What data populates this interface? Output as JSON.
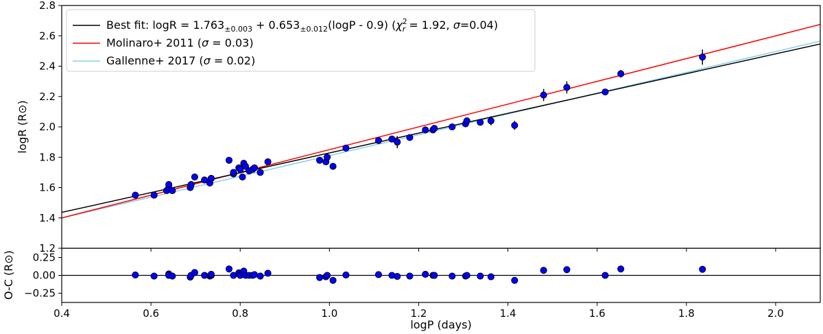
{
  "chart_data": [
    {
      "type": "scatter",
      "panel": "main",
      "xlabel": "logP (days)",
      "ylabel": "logR (R⊙)",
      "xlim": [
        0.4,
        2.1
      ],
      "ylim": [
        1.2,
        2.8
      ],
      "xticks": [
        "0.4",
        "0.6",
        "0.8",
        "1.0",
        "1.2",
        "1.4",
        "1.6",
        "1.8",
        "2.0"
      ],
      "yticks": [
        "1.2",
        "1.4",
        "1.6",
        "1.8",
        "2.0",
        "2.2",
        "2.4",
        "2.6",
        "2.8"
      ],
      "legend": {
        "placement": "top-left",
        "entries": [
          {
            "name": "best-fit",
            "color": "#000000",
            "parts": {
              "a": "Best fit: logR = 1.763",
              "a_sub": "±0.003",
              "b": " + 0.653",
              "b_sub": "±0.012",
              "c": "(logP - 0.9) (",
              "chi": "χ",
              "chi_sup": "2",
              "chi_sub": "r",
              "d": " = 1.92, ",
              "sigma": "σ",
              "e": "=0.04)"
            }
          },
          {
            "name": "molinaro",
            "color": "#ff0000",
            "parts": {
              "a": "Molinaro+ 2011 (",
              "sigma": "σ",
              "e": " = 0.03)"
            }
          },
          {
            "name": "gallenne",
            "color": "#87ceeb",
            "parts": {
              "a": "Gallenne+ 2017 (",
              "sigma": "σ",
              "e": " = 0.02)"
            }
          }
        ]
      },
      "lines": [
        {
          "name": "Best fit",
          "color": "#000000",
          "intercept": 1.763,
          "slope": 0.653,
          "pivot": 0.9
        },
        {
          "name": "Molinaro+ 2011",
          "color": "#ff0000",
          "x": [
            0.4,
            2.1
          ],
          "y": [
            1.4,
            2.675
          ]
        },
        {
          "name": "Gallenne+ 2017",
          "color": "#87ceeb",
          "x": [
            0.4,
            2.1
          ],
          "y": [
            1.4,
            2.565
          ]
        }
      ],
      "points": {
        "marker_color": "#0000ff",
        "x": [
          0.565,
          0.607,
          0.635,
          0.64,
          0.64,
          0.648,
          0.688,
          0.69,
          0.698,
          0.72,
          0.732,
          0.735,
          0.735,
          0.775,
          0.785,
          0.785,
          0.797,
          0.8,
          0.805,
          0.808,
          0.812,
          0.82,
          0.828,
          0.832,
          0.845,
          0.862,
          0.978,
          0.992,
          0.995,
          1.008,
          1.037,
          1.11,
          1.14,
          1.152,
          1.18,
          1.215,
          1.232,
          1.235,
          1.275,
          1.305,
          1.308,
          1.338,
          1.362,
          1.415,
          1.48,
          1.532,
          1.618,
          1.653,
          1.836
        ],
        "y": [
          1.55,
          1.55,
          1.58,
          1.6,
          1.62,
          1.58,
          1.6,
          1.62,
          1.67,
          1.65,
          1.63,
          1.66,
          1.66,
          1.78,
          1.69,
          1.7,
          1.73,
          1.72,
          1.67,
          1.76,
          1.74,
          1.71,
          1.72,
          1.73,
          1.7,
          1.77,
          1.78,
          1.77,
          1.8,
          1.74,
          1.86,
          1.91,
          1.92,
          1.9,
          1.93,
          1.98,
          1.98,
          1.99,
          2.0,
          2.02,
          2.04,
          2.03,
          2.04,
          2.01,
          2.21,
          2.26,
          2.23,
          2.35,
          2.46
        ],
        "yerr": [
          0.01,
          0.01,
          0.015,
          0.01,
          0.01,
          0.01,
          0.015,
          0.01,
          0.01,
          0.01,
          0.01,
          0.01,
          0.01,
          0.01,
          0.02,
          0.01,
          0.01,
          0.01,
          0.01,
          0.01,
          0.01,
          0.01,
          0.01,
          0.01,
          0.02,
          0.01,
          0.01,
          0.01,
          0.02,
          0.02,
          0.015,
          0.02,
          0.02,
          0.04,
          0.01,
          0.01,
          0.02,
          0.02,
          0.01,
          0.02,
          0.02,
          0.02,
          0.03,
          0.03,
          0.04,
          0.04,
          0.01,
          0.025,
          0.05
        ]
      }
    },
    {
      "type": "scatter",
      "panel": "residuals",
      "xlabel": "logP (days)",
      "ylabel": "O-C (R⊙)",
      "xlim": [
        0.4,
        2.1
      ],
      "ylim": [
        -0.38,
        0.38
      ],
      "yticks": [
        "−0.25",
        "0.00",
        "0.25"
      ],
      "zero_line": 0.0,
      "points": {
        "marker_color": "#0000ff",
        "x": [
          0.565,
          0.607,
          0.64,
          0.64,
          0.648,
          0.688,
          0.69,
          0.698,
          0.72,
          0.732,
          0.735,
          0.735,
          0.775,
          0.785,
          0.797,
          0.8,
          0.805,
          0.808,
          0.812,
          0.82,
          0.828,
          0.832,
          0.845,
          0.862,
          0.978,
          0.992,
          0.995,
          1.008,
          1.037,
          1.11,
          1.14,
          1.152,
          1.18,
          1.215,
          1.232,
          1.235,
          1.275,
          1.305,
          1.308,
          1.338,
          1.362,
          1.415,
          1.48,
          1.532,
          1.618,
          1.653,
          1.836
        ],
        "y": [
          0.005,
          -0.01,
          0.02,
          0.0,
          -0.01,
          -0.025,
          0.0,
          0.04,
          0.0,
          -0.01,
          0.0,
          0.015,
          0.09,
          0.0,
          0.035,
          0.0,
          0.04,
          0.06,
          0.0,
          0.0,
          0.0,
          0.01,
          -0.01,
          0.03,
          -0.03,
          -0.02,
          0.0,
          -0.07,
          0.005,
          0.01,
          0.0,
          -0.015,
          -0.01,
          0.015,
          0.0,
          0.0,
          -0.01,
          -0.01,
          0.0,
          -0.01,
          -0.02,
          -0.07,
          0.07,
          0.08,
          0.0,
          0.09,
          0.085
        ]
      }
    }
  ]
}
